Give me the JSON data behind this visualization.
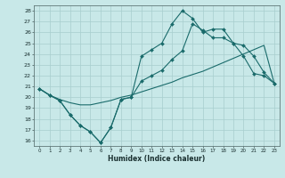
{
  "xlabel": "Humidex (Indice chaleur)",
  "bg_color": "#c8e8e8",
  "line_color": "#1a6b6b",
  "grid_color": "#a8cece",
  "x_values": [
    0,
    1,
    2,
    3,
    4,
    5,
    6,
    7,
    8,
    9,
    10,
    11,
    12,
    13,
    14,
    15,
    16,
    17,
    18,
    19,
    20,
    21,
    22,
    23
  ],
  "line_top": [
    20.8,
    20.2,
    19.7,
    18.4,
    17.4,
    16.8,
    15.8,
    17.2,
    19.8,
    20.0,
    23.8,
    24.4,
    25.0,
    26.8,
    28.0,
    27.3,
    26.0,
    26.3,
    26.3,
    25.0,
    23.8,
    22.2,
    22.0,
    21.3
  ],
  "line_mid": [
    20.8,
    20.2,
    19.7,
    18.4,
    17.4,
    16.8,
    15.8,
    17.2,
    19.8,
    20.0,
    21.5,
    22.0,
    22.5,
    23.5,
    24.3,
    26.8,
    26.2,
    25.5,
    25.5,
    25.0,
    24.8,
    23.8,
    22.3,
    21.3
  ],
  "line_bot": [
    20.8,
    20.2,
    19.8,
    19.5,
    19.3,
    19.3,
    19.5,
    19.7,
    20.0,
    20.2,
    20.5,
    20.8,
    21.1,
    21.4,
    21.8,
    22.1,
    22.4,
    22.8,
    23.2,
    23.6,
    24.0,
    24.4,
    24.8,
    21.3
  ],
  "ylim": [
    15.5,
    28.5
  ],
  "yticks": [
    16,
    17,
    18,
    19,
    20,
    21,
    22,
    23,
    24,
    25,
    26,
    27,
    28
  ],
  "xlim": [
    -0.5,
    23.5
  ],
  "xticks": [
    0,
    1,
    2,
    3,
    4,
    5,
    6,
    7,
    8,
    9,
    10,
    11,
    12,
    13,
    14,
    15,
    16,
    17,
    18,
    19,
    20,
    21,
    22,
    23
  ]
}
